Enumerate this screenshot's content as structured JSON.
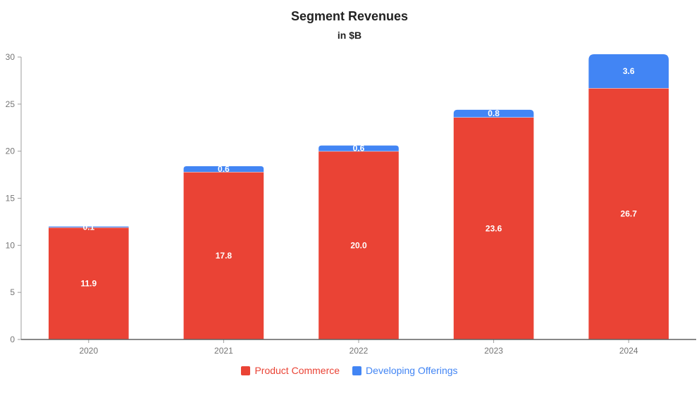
{
  "chart_data": {
    "type": "bar",
    "stacked": true,
    "title": "Segment Revenues",
    "subtitle": "in $B",
    "categories": [
      "2020",
      "2021",
      "2022",
      "2023",
      "2024"
    ],
    "series": [
      {
        "name": "Product Commerce",
        "color": "#ea4335",
        "values": [
          11.9,
          17.8,
          20.0,
          23.6,
          26.7
        ],
        "labels": [
          "11.9",
          "17.8",
          "20.0",
          "23.6",
          "26.7"
        ]
      },
      {
        "name": "Developing Offerings",
        "color": "#4285f4",
        "values": [
          0.1,
          0.6,
          0.6,
          0.8,
          3.6
        ],
        "labels": [
          "0.1",
          "0.6",
          "0.6",
          "0.8",
          "3.6"
        ]
      }
    ],
    "ylim": [
      0,
      30
    ],
    "yticks": [
      "0",
      "5",
      "10",
      "15",
      "20",
      "25",
      "30"
    ],
    "legend": "bottom",
    "grid": false
  }
}
